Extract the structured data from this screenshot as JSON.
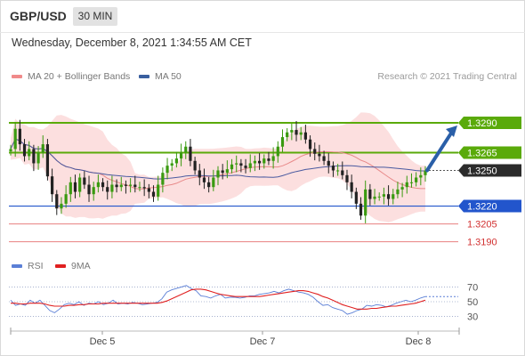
{
  "header": {
    "symbol": "GBP/USD",
    "timeframe": "30 MIN"
  },
  "datetime": "Wednesday, December 8, 2021 1:34:55 AM CET",
  "legend": {
    "items": [
      {
        "label": "MA 20 + Bollinger Bands",
        "color": "#f08a8a"
      },
      {
        "label": "MA 50",
        "color": "#3a5f9f"
      }
    ],
    "credit": "Research © 2021 Trading Central"
  },
  "rsi_legend": {
    "items": [
      {
        "label": "RSI",
        "color": "#5b7fd6"
      },
      {
        "label": "9MA",
        "color": "#e02020"
      }
    ]
  },
  "colors": {
    "up": "#3a9a10",
    "down": "#222222",
    "bands": "#fbd9d9",
    "ma20": "#e88a8a",
    "ma50": "#4a5aa0",
    "resistance": "#5aaa0a",
    "support": "#2255cc",
    "level": "#e88080",
    "arrow": "#2a5fa8"
  },
  "chart_data": [
    {
      "type": "candlestick",
      "title": "",
      "x_ticks": [
        "Dec 5",
        "Dec 7",
        "Dec 8"
      ],
      "ylim": [
        1.318,
        1.3305
      ],
      "current_price": 1.325,
      "levels": [
        {
          "label": "1.3290",
          "value": 1.329,
          "kind": "resistance"
        },
        {
          "label": "1.3265",
          "value": 1.3265,
          "kind": "resistance"
        },
        {
          "label": "1.3250",
          "value": 1.325,
          "kind": "current"
        },
        {
          "label": "1.3220",
          "value": 1.322,
          "kind": "support"
        },
        {
          "label": "1.3205",
          "value": 1.3205,
          "kind": "plain"
        },
        {
          "label": "1.3190",
          "value": 1.319,
          "kind": "plain"
        }
      ],
      "close_path": [
        1.3268,
        1.3285,
        1.3272,
        1.3262,
        1.3268,
        1.3256,
        1.3265,
        1.3272,
        1.3245,
        1.323,
        1.3218,
        1.3222,
        1.323,
        1.324,
        1.3232,
        1.3244,
        1.3238,
        1.323,
        1.3236,
        1.324,
        1.3236,
        1.3232,
        1.3238,
        1.3236,
        1.3238,
        1.3237,
        1.3238,
        1.3236,
        1.3236,
        1.3235,
        1.3232,
        1.3228,
        1.3238,
        1.3248,
        1.3254,
        1.3256,
        1.326,
        1.3265,
        1.327,
        1.3258,
        1.325,
        1.3244,
        1.324,
        1.3236,
        1.3244,
        1.325,
        1.3248,
        1.3251,
        1.3255,
        1.3256,
        1.3254,
        1.3252,
        1.3256,
        1.3258,
        1.3256,
        1.326,
        1.3258,
        1.3262,
        1.327,
        1.3278,
        1.3282,
        1.3284,
        1.328,
        1.3282,
        1.3276,
        1.3268,
        1.3264,
        1.3262,
        1.3258,
        1.3254,
        1.325,
        1.325,
        1.3246,
        1.324,
        1.3232,
        1.3222,
        1.3212,
        1.3234,
        1.3226,
        1.3228,
        1.3228,
        1.323,
        1.3226,
        1.323,
        1.3234,
        1.3236,
        1.324,
        1.324,
        1.3244,
        1.3246,
        1.325
      ]
    },
    {
      "type": "line",
      "title": "",
      "series": [
        {
          "name": "RSI"
        },
        {
          "name": "9MA"
        }
      ],
      "y_ticks": [
        70,
        50,
        30
      ],
      "ylim": [
        15,
        85
      ],
      "rsi": [
        52,
        45,
        47,
        45,
        52,
        48,
        52,
        45,
        38,
        35,
        40,
        46,
        48,
        46,
        50,
        45,
        48,
        47,
        50,
        46,
        48,
        52,
        47,
        48,
        47,
        49,
        48,
        46,
        47,
        48,
        49,
        54,
        63,
        66,
        68,
        70,
        72,
        68,
        65,
        58,
        57,
        55,
        58,
        60,
        55,
        56,
        56,
        55,
        56,
        58,
        58,
        60,
        61,
        62,
        64,
        62,
        65,
        67,
        65,
        63,
        62,
        60,
        56,
        50,
        45,
        46,
        42,
        40,
        38,
        33,
        35,
        38,
        40,
        45,
        44,
        46,
        45,
        43,
        45,
        48,
        50,
        52,
        50,
        52,
        55,
        57
      ],
      "ma9": [
        48,
        48,
        47,
        47,
        48,
        48,
        48,
        47,
        45,
        44,
        44,
        44,
        45,
        45,
        46,
        46,
        47,
        47,
        47,
        48,
        48,
        48,
        48,
        48,
        48,
        48,
        48,
        48,
        48,
        48,
        48,
        49,
        51,
        54,
        57,
        60,
        63,
        66,
        67,
        67,
        66,
        64,
        62,
        60,
        59,
        58,
        57,
        57,
        57,
        57,
        57,
        57,
        58,
        59,
        60,
        61,
        62,
        63,
        64,
        65,
        65,
        64,
        62,
        60,
        57,
        55,
        52,
        49,
        46,
        44,
        42,
        40,
        40,
        40,
        41,
        41,
        42,
        43,
        44,
        44,
        45,
        46,
        47,
        48,
        50,
        52
      ]
    }
  ]
}
